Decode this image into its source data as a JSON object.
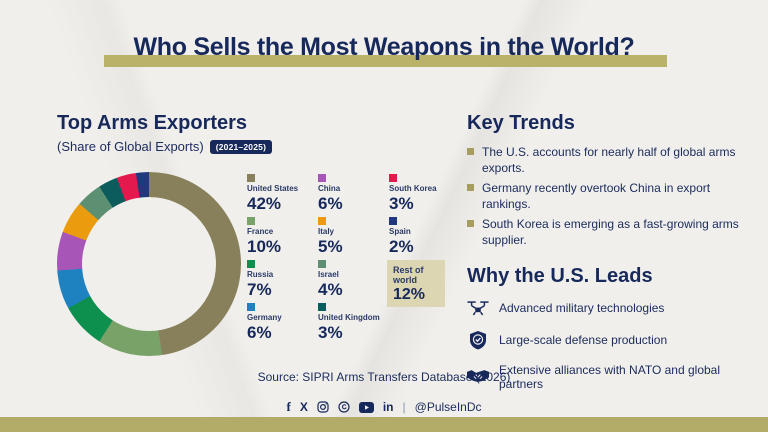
{
  "page": {
    "title": "Who Sells the Most Weapons in the World?"
  },
  "accents": {
    "navy": "#17285a",
    "khaki": "#bab269",
    "background": "#f0efec"
  },
  "chart_section": {
    "heading": "Top Arms Exporters",
    "subheading": "(Share of Global Exports)",
    "period_badge": "(2021–2025)"
  },
  "chart_data": {
    "type": "pie",
    "variant": "donut",
    "title": "Top Arms Exporters (Share of Global Exports) 2021–2025",
    "unit": "%",
    "segments": [
      {
        "label": "United States",
        "value": 42,
        "color": "#87805a"
      },
      {
        "label": "China",
        "value": 6,
        "color": "#a855b8"
      },
      {
        "label": "South Korea",
        "value": 3,
        "color": "#e41a4f"
      },
      {
        "label": "France",
        "value": 10,
        "color": "#79a269"
      },
      {
        "label": "Italy",
        "value": 5,
        "color": "#eb9c0e"
      },
      {
        "label": "Spain",
        "value": 2,
        "color": "#21387d"
      },
      {
        "label": "Russia",
        "value": 7,
        "color": "#0d8f4e"
      },
      {
        "label": "Israel",
        "value": 4,
        "color": "#5d8f72"
      },
      {
        "label": "Germany",
        "value": 6,
        "color": "#1f82c0"
      },
      {
        "label": "United Kingdom",
        "value": 3,
        "color": "#0c5c5e"
      },
      {
        "label": "Rest of world",
        "value": 12,
        "color": "#dcd7b2",
        "boxed": true
      }
    ],
    "legend_display_order": [
      "United States",
      "China",
      "South Korea",
      "France",
      "Italy",
      "Spain",
      "Russia",
      "Israel",
      "Rest of world",
      "Germany",
      "United Kingdom"
    ],
    "donut_order": [
      "United States",
      "France",
      "Russia",
      "Germany",
      "China",
      "Italy",
      "Israel",
      "United Kingdom",
      "South Korea",
      "Spain"
    ],
    "legend_position": "right of donut, 3-column grid",
    "note": "donut ring shows the 10 named countries only (shares renormalized); Rest of world shown as boxed legend entry"
  },
  "key_trends": {
    "heading": "Key Trends",
    "bullets": [
      "The U.S. accounts for nearly half of global arms exports.",
      "Germany recently overtook China in export rankings.",
      "South Korea is emerging as a fast-growing arms supplier."
    ]
  },
  "why_us_leads": {
    "heading": "Why the U.S. Leads",
    "items": [
      {
        "icon": "drone-icon",
        "text": "Advanced military technologies"
      },
      {
        "icon": "shield-check-icon",
        "text": "Large-scale defense production"
      },
      {
        "icon": "handshake-icon",
        "text": "Extensive alliances with NATO and global partners"
      }
    ]
  },
  "footer": {
    "source": "Source: SIPRI Arms Transfers Database (2026)",
    "separator": "|",
    "social_handle": "@PulseInDc",
    "social_icons": [
      "facebook-icon",
      "x-icon",
      "instagram-icon",
      "threads-icon",
      "youtube-icon",
      "linkedin-icon"
    ]
  }
}
